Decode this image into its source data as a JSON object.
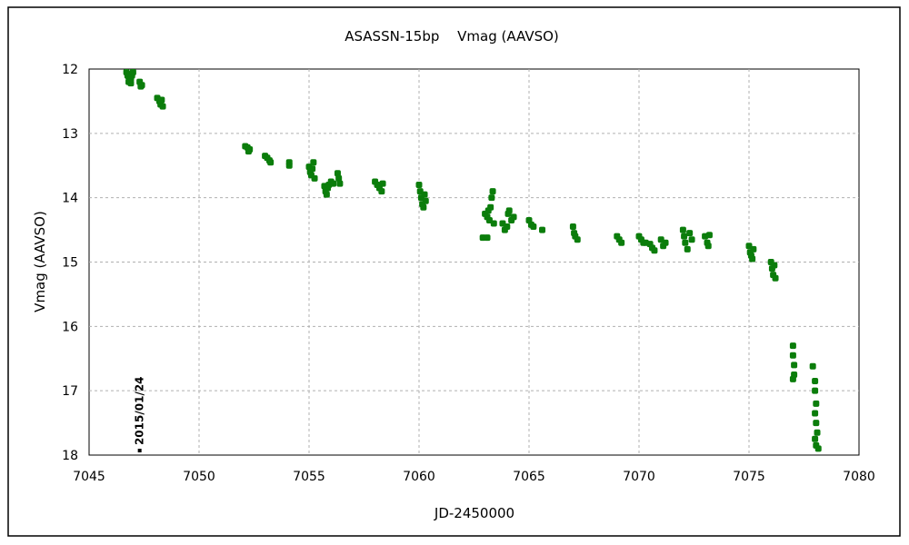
{
  "chart_data": {
    "type": "scatter",
    "title": "ASASSN-15bp　 Vmag (AAVSO)",
    "xlabel": "JD-2450000",
    "ylabel": "Vmag (AAVSO)",
    "xlim": [
      7045,
      7080
    ],
    "ylim": [
      12,
      18
    ],
    "y_inverted": true,
    "x_ticks": [
      7045,
      7050,
      7055,
      7060,
      7065,
      7070,
      7075,
      7080
    ],
    "y_ticks": [
      12,
      13,
      14,
      15,
      16,
      17,
      18
    ],
    "grid": true,
    "marker_color": "#0b7d0b",
    "annotation": {
      "text": "2015/01/24",
      "x": 7047.3,
      "y": 17.93
    },
    "series": [
      {
        "points": [
          [
            7046.7,
            12.05
          ],
          [
            7046.75,
            12.1
          ],
          [
            7046.8,
            12.12
          ],
          [
            7046.85,
            12.08
          ],
          [
            7046.9,
            12.15
          ],
          [
            7046.95,
            12.1
          ],
          [
            7047.0,
            12.05
          ],
          [
            7046.8,
            12.2
          ],
          [
            7046.9,
            12.22
          ],
          [
            7047.3,
            12.2
          ],
          [
            7047.4,
            12.25
          ],
          [
            7047.35,
            12.27
          ],
          [
            7048.1,
            12.45
          ],
          [
            7048.2,
            12.5
          ],
          [
            7048.25,
            12.55
          ],
          [
            7048.3,
            12.48
          ],
          [
            7048.35,
            12.58
          ],
          [
            7052.1,
            13.2
          ],
          [
            7052.2,
            13.22
          ],
          [
            7052.25,
            13.28
          ],
          [
            7052.3,
            13.25
          ],
          [
            7053.0,
            13.35
          ],
          [
            7053.1,
            13.38
          ],
          [
            7053.2,
            13.42
          ],
          [
            7053.25,
            13.45
          ],
          [
            7054.1,
            13.45
          ],
          [
            7054.1,
            13.5
          ],
          [
            7055.0,
            13.52
          ],
          [
            7055.05,
            13.6
          ],
          [
            7055.1,
            13.65
          ],
          [
            7055.15,
            13.55
          ],
          [
            7055.2,
            13.45
          ],
          [
            7055.25,
            13.7
          ],
          [
            7055.7,
            13.82
          ],
          [
            7055.75,
            13.9
          ],
          [
            7055.8,
            13.95
          ],
          [
            7055.85,
            13.85
          ],
          [
            7055.9,
            13.8
          ],
          [
            7056.0,
            13.75
          ],
          [
            7056.1,
            13.78
          ],
          [
            7056.3,
            13.62
          ],
          [
            7056.35,
            13.7
          ],
          [
            7056.4,
            13.78
          ],
          [
            7058.0,
            13.75
          ],
          [
            7058.1,
            13.8
          ],
          [
            7058.2,
            13.85
          ],
          [
            7058.3,
            13.9
          ],
          [
            7058.35,
            13.78
          ],
          [
            7060.0,
            13.8
          ],
          [
            7060.05,
            13.9
          ],
          [
            7060.1,
            14.0
          ],
          [
            7060.15,
            14.1
          ],
          [
            7060.2,
            14.15
          ],
          [
            7060.25,
            13.95
          ],
          [
            7060.3,
            14.05
          ],
          [
            7063.0,
            14.25
          ],
          [
            7063.1,
            14.3
          ],
          [
            7063.15,
            14.2
          ],
          [
            7063.2,
            14.35
          ],
          [
            7063.25,
            14.15
          ],
          [
            7063.3,
            14.0
          ],
          [
            7063.35,
            13.9
          ],
          [
            7063.4,
            14.4
          ],
          [
            7062.9,
            14.62
          ],
          [
            7063.1,
            14.62
          ],
          [
            7063.8,
            14.4
          ],
          [
            7063.9,
            14.5
          ],
          [
            7064.0,
            14.45
          ],
          [
            7064.05,
            14.25
          ],
          [
            7064.1,
            14.2
          ],
          [
            7064.2,
            14.35
          ],
          [
            7064.3,
            14.3
          ],
          [
            7065.0,
            14.35
          ],
          [
            7065.1,
            14.42
          ],
          [
            7065.2,
            14.45
          ],
          [
            7065.6,
            14.5
          ],
          [
            7067.0,
            14.45
          ],
          [
            7067.05,
            14.55
          ],
          [
            7067.1,
            14.6
          ],
          [
            7067.2,
            14.65
          ],
          [
            7069.0,
            14.6
          ],
          [
            7069.1,
            14.65
          ],
          [
            7069.2,
            14.7
          ],
          [
            7070.0,
            14.6
          ],
          [
            7070.1,
            14.65
          ],
          [
            7070.2,
            14.7
          ],
          [
            7070.3,
            14.7
          ],
          [
            7070.5,
            14.72
          ],
          [
            7070.6,
            14.78
          ],
          [
            7070.7,
            14.82
          ],
          [
            7071.0,
            14.65
          ],
          [
            7071.1,
            14.75
          ],
          [
            7071.2,
            14.7
          ],
          [
            7072.0,
            14.5
          ],
          [
            7072.05,
            14.6
          ],
          [
            7072.1,
            14.7
          ],
          [
            7072.2,
            14.8
          ],
          [
            7072.3,
            14.55
          ],
          [
            7072.4,
            14.65
          ],
          [
            7073.0,
            14.6
          ],
          [
            7073.1,
            14.7
          ],
          [
            7073.15,
            14.75
          ],
          [
            7073.2,
            14.58
          ],
          [
            7075.0,
            14.75
          ],
          [
            7075.05,
            14.85
          ],
          [
            7075.1,
            14.9
          ],
          [
            7075.15,
            14.95
          ],
          [
            7075.2,
            14.8
          ],
          [
            7076.0,
            15.0
          ],
          [
            7076.05,
            15.1
          ],
          [
            7076.1,
            15.2
          ],
          [
            7076.2,
            15.25
          ],
          [
            7076.15,
            15.05
          ],
          [
            7077.0,
            16.3
          ],
          [
            7077.0,
            16.45
          ],
          [
            7077.05,
            16.6
          ],
          [
            7077.05,
            16.75
          ],
          [
            7077.0,
            16.82
          ],
          [
            7077.9,
            16.62
          ],
          [
            7078.0,
            16.85
          ],
          [
            7078.0,
            17.0
          ],
          [
            7078.05,
            17.2
          ],
          [
            7078.0,
            17.35
          ],
          [
            7078.05,
            17.5
          ],
          [
            7078.1,
            17.65
          ],
          [
            7078.0,
            17.75
          ],
          [
            7078.05,
            17.85
          ],
          [
            7078.15,
            17.9
          ]
        ]
      }
    ]
  }
}
